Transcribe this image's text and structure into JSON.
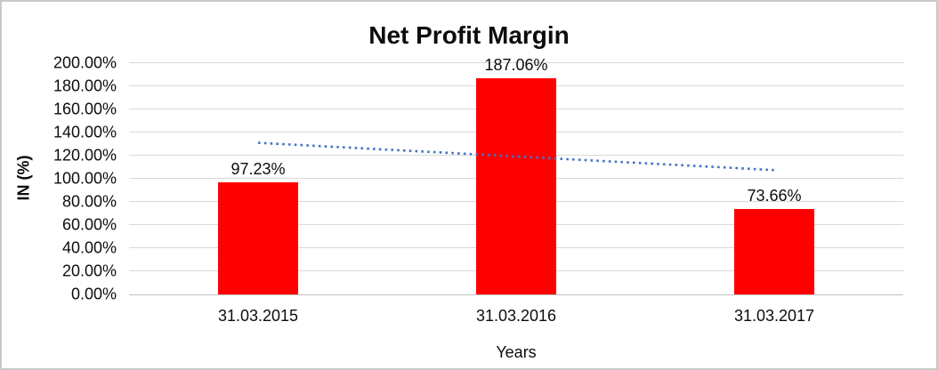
{
  "chart_data": {
    "type": "bar",
    "title": "Net Profit Margin",
    "xlabel": "Years",
    "ylabel": "IN (%)",
    "categories": [
      "31.03.2015",
      "31.03.2016",
      "31.03.2017"
    ],
    "values": [
      97.23,
      187.06,
      73.66
    ],
    "data_labels": [
      "97.23%",
      "187.06%",
      "73.66%"
    ],
    "ylim": [
      0,
      200
    ],
    "ytick_step": 20,
    "ytick_labels": [
      "0.00%",
      "20.00%",
      "40.00%",
      "60.00%",
      "80.00%",
      "100.00%",
      "120.00%",
      "140.00%",
      "160.00%",
      "180.00%",
      "200.00%"
    ],
    "grid": true,
    "legend": "none",
    "bar_color": "#ff0000",
    "gridline_color": "#d9d9d9",
    "axis_line_color": "#bfbfbf",
    "text_color": "#0d0d0d",
    "trendline": {
      "type": "linear",
      "style": "dotted",
      "color": "#4472c4",
      "start_value": 131.1,
      "end_value": 107.5
    }
  }
}
